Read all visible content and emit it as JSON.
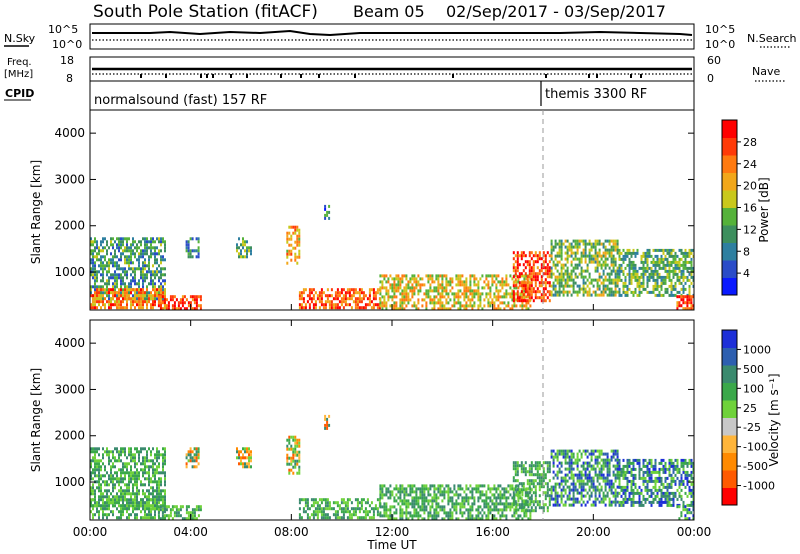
{
  "header": {
    "station": "South Pole Station (fitACF)",
    "beam": "Beam 05",
    "dates": "02/Sep/2017 - 03/Sep/2017"
  },
  "summary": {
    "nsky_label": "N.Sky",
    "nsearch_label": "N.Search",
    "noise_top_tick": "10^5",
    "noise_bottom_tick": "10^0",
    "freq_label_line1": "Freq.",
    "freq_label_line2": "[MHz]",
    "freq_top_tick": "18",
    "freq_bottom_tick": "8",
    "nave_label": "Nave",
    "nave_top_tick": "60",
    "nave_bottom_tick": "0",
    "cpid_label": "CPID",
    "cpid_1": "normalsound (fast) 157 RF",
    "cpid_2": "themis 3300 RF"
  },
  "colorbars": {
    "power": {
      "label": "Power [dB]",
      "ticks": [
        "28",
        "24",
        "20",
        "16",
        "12",
        "8",
        "4"
      ],
      "colors": [
        "#0a1aff",
        "#2a4cc8",
        "#2e7fa0",
        "#3d8f5e",
        "#55b23a",
        "#c9c81c",
        "#f2a71a",
        "#ff7a10",
        "#ff3a08",
        "#ff0000"
      ]
    },
    "velocity": {
      "label": "Velocity [m s⁻¹]",
      "ticks": [
        "1000",
        "500",
        "100",
        "25",
        "-25",
        "-100",
        "-500",
        "-1000"
      ],
      "colors": [
        "#ff0000",
        "#ff5a00",
        "#ff8a00",
        "#ffb53a",
        "#c8c8c8",
        "#6fd23a",
        "#3aa84a",
        "#3a8a6e",
        "#2d5fb0",
        "#1d2fd8"
      ]
    }
  },
  "chart_data": {
    "type": "heatmap",
    "xlabel": "Time UT",
    "x_ticks": [
      "00:00",
      "04:00",
      "08:00",
      "12:00",
      "16:00",
      "20:00",
      "00:00"
    ],
    "x_range_hours": [
      0,
      24
    ],
    "ylabel": "Slant Range [km]",
    "y_ticks": [
      1000,
      2000,
      3000,
      4000
    ],
    "ylim": [
      180,
      4500
    ],
    "dashed_marker_time_hours": 18,
    "panels": [
      {
        "name": "Power [dB]",
        "range": [
          0,
          30
        ]
      },
      {
        "name": "Velocity [m s⁻¹]",
        "range": [
          -1000,
          1000
        ]
      }
    ],
    "echo_regions": [
      {
        "t_start": 0.0,
        "t_end": 3.0,
        "r_min": 400,
        "r_max": 1750,
        "power": 10
      },
      {
        "t_start": 0.0,
        "t_end": 3.0,
        "r_min": 200,
        "r_max": 650,
        "power": 22
      },
      {
        "t_start": 2.7,
        "t_end": 4.4,
        "r_min": 200,
        "r_max": 500,
        "power": 26
      },
      {
        "t_start": 3.8,
        "t_end": 4.3,
        "r_min": 1300,
        "r_max": 1750,
        "power": 9
      },
      {
        "t_start": 5.8,
        "t_end": 6.4,
        "r_min": 1300,
        "r_max": 1750,
        "power": 12
      },
      {
        "t_start": 7.8,
        "t_end": 8.3,
        "r_min": 1200,
        "r_max": 2000,
        "power": 20
      },
      {
        "t_start": 9.3,
        "t_end": 9.5,
        "r_min": 2150,
        "r_max": 2450,
        "power": 8
      },
      {
        "t_start": 8.3,
        "t_end": 11.5,
        "r_min": 200,
        "r_max": 650,
        "power": 24
      },
      {
        "t_start": 11.5,
        "t_end": 17.5,
        "r_min": 200,
        "r_max": 950,
        "power": 18
      },
      {
        "t_start": 16.8,
        "t_end": 18.3,
        "r_min": 350,
        "r_max": 1450,
        "power": 26
      },
      {
        "t_start": 18.3,
        "t_end": 21.0,
        "r_min": 500,
        "r_max": 1700,
        "power": 14
      },
      {
        "t_start": 21.0,
        "t_end": 24.0,
        "r_min": 500,
        "r_max": 1500,
        "power": 12
      },
      {
        "t_start": 23.3,
        "t_end": 24.0,
        "r_min": 200,
        "r_max": 500,
        "power": 26
      }
    ]
  }
}
